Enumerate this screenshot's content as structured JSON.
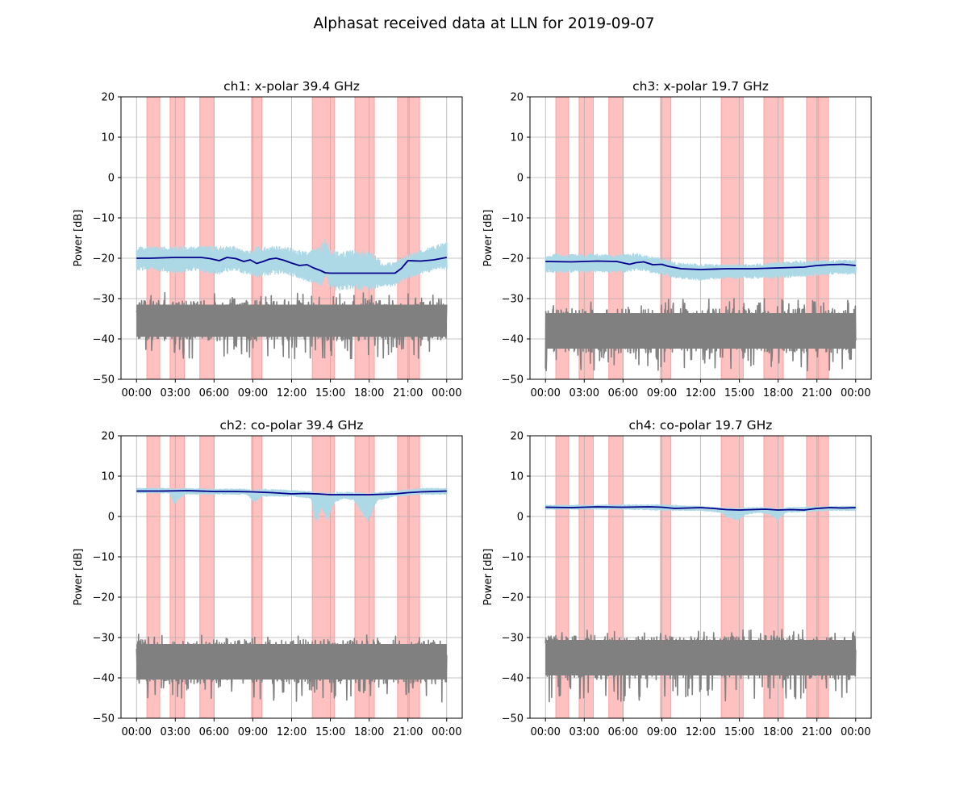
{
  "figure": {
    "suptitle": "Alphasat received data at LLN for 2019-09-07"
  },
  "colors": {
    "rain_band": "#ff9999",
    "raw_signal": "#add8e6",
    "smoothed_signal": "#00008b",
    "noise_floor": "#808080",
    "grid": "#b0b0b0"
  },
  "chart_data": [
    {
      "type": "line",
      "title": "ch1: x-polar 39.4 GHz",
      "ylabel": "Power [dB]",
      "xlabel": "",
      "ylim": [
        -50,
        20
      ],
      "yticks": [
        -50,
        -40,
        -30,
        -20,
        -10,
        0,
        10,
        20
      ],
      "xlim_hours": [
        -1.2,
        25.2
      ],
      "xtick_hours": [
        0,
        3,
        6,
        9,
        12,
        15,
        18,
        21,
        24
      ],
      "xtick_labels": [
        "00:00",
        "03:00",
        "06:00",
        "09:00",
        "12:00",
        "15:00",
        "18:00",
        "21:00",
        "00:00"
      ],
      "grid": true,
      "rain_intervals_hours": [
        [
          0.8,
          1.8
        ],
        [
          2.6,
          3.7
        ],
        [
          4.9,
          6.0
        ],
        [
          8.9,
          9.7
        ],
        [
          13.6,
          15.3
        ],
        [
          16.9,
          18.4
        ],
        [
          20.2,
          21.1
        ],
        [
          21.1,
          21.9
        ]
      ],
      "series": [
        {
          "role": "raw_band",
          "x": [
            0,
            1.5,
            3,
            4.5,
            6,
            6.5,
            7.5,
            8.5,
            9.5,
            10.5,
            11.5,
            12.5,
            13.5,
            14.2,
            14.6,
            15,
            16,
            17,
            18,
            19,
            20,
            21,
            22,
            23,
            24
          ],
          "upper": [
            -17,
            -17,
            -17,
            -17,
            -17,
            -17,
            -17,
            -18,
            -17,
            -17,
            -17,
            -18,
            -18,
            -17,
            -15,
            -18,
            -18,
            -18,
            -18,
            -21,
            -21,
            -19,
            -18,
            -17,
            -16
          ],
          "lower": [
            -23,
            -23,
            -24,
            -23,
            -24,
            -24,
            -23,
            -24,
            -25,
            -24,
            -24,
            -25,
            -26,
            -27,
            -25,
            -28,
            -28,
            -28,
            -28,
            -27,
            -27,
            -25,
            -24,
            -23,
            -23
          ]
        },
        {
          "role": "smoothed",
          "x": [
            0,
            1,
            2,
            3,
            4,
            5,
            5.7,
            6.4,
            7,
            7.7,
            8.3,
            8.8,
            9.3,
            9.8,
            10.3,
            10.8,
            11.4,
            12,
            12.6,
            13.2,
            13.7,
            14.2,
            14.6,
            15,
            16,
            17,
            18,
            19,
            20,
            20.5,
            21,
            22,
            23,
            24
          ],
          "y": [
            -20.0,
            -20.0,
            -19.9,
            -19.8,
            -19.8,
            -19.8,
            -20.1,
            -20.6,
            -19.8,
            -20.1,
            -20.8,
            -20.4,
            -21.3,
            -20.8,
            -20.2,
            -20.0,
            -20.5,
            -21.2,
            -21.8,
            -21.6,
            -22.4,
            -23.0,
            -23.6,
            -23.7,
            -23.7,
            -23.7,
            -23.7,
            -23.7,
            -23.7,
            -22.5,
            -20.6,
            -20.7,
            -20.4,
            -19.8
          ]
        },
        {
          "role": "noise_floor",
          "center": -35.5,
          "core_half_width": 5,
          "spike_low": -45,
          "spike_high": -28.5
        }
      ]
    },
    {
      "type": "line",
      "title": "ch3: x-polar 19.7 GHz",
      "ylabel": "Power [dB]",
      "xlabel": "",
      "ylim": [
        -50,
        20
      ],
      "yticks": [
        -50,
        -40,
        -30,
        -20,
        -10,
        0,
        10,
        20
      ],
      "xlim_hours": [
        -1.2,
        25.2
      ],
      "xtick_hours": [
        0,
        3,
        6,
        9,
        12,
        15,
        18,
        21,
        24
      ],
      "xtick_labels": [
        "00:00",
        "03:00",
        "06:00",
        "09:00",
        "12:00",
        "15:00",
        "18:00",
        "21:00",
        "00:00"
      ],
      "grid": true,
      "rain_intervals_hours": [
        [
          0.8,
          1.8
        ],
        [
          2.6,
          3.7
        ],
        [
          4.9,
          6.0
        ],
        [
          8.9,
          9.7
        ],
        [
          13.6,
          15.3
        ],
        [
          16.9,
          18.4
        ],
        [
          20.2,
          21.1
        ],
        [
          21.1,
          21.9
        ]
      ],
      "series": [
        {
          "role": "raw_band",
          "x": [
            0,
            3,
            6,
            7,
            8,
            9,
            10,
            12,
            14,
            16,
            18,
            20,
            22,
            24
          ],
          "upper": [
            -19,
            -19,
            -19,
            -18.8,
            -19.5,
            -20,
            -21,
            -21.5,
            -21.5,
            -21.5,
            -21,
            -20.5,
            -20.5,
            -20.5
          ],
          "lower": [
            -23.5,
            -23.5,
            -23.5,
            -23,
            -23.5,
            -24,
            -25,
            -25.5,
            -25,
            -25,
            -25,
            -24.5,
            -24,
            -24
          ]
        },
        {
          "role": "smoothed",
          "x": [
            0,
            2,
            4,
            5.5,
            6.5,
            7,
            7.6,
            8.3,
            9,
            9.5,
            10.5,
            12,
            14,
            16,
            18,
            20,
            21,
            22,
            23,
            24
          ],
          "y": [
            -20.8,
            -20.9,
            -20.7,
            -20.8,
            -21.5,
            -21.1,
            -20.9,
            -21.6,
            -21.5,
            -22.0,
            -22.6,
            -22.8,
            -22.6,
            -22.6,
            -22.4,
            -22.2,
            -21.8,
            -21.6,
            -21.5,
            -21.8
          ]
        },
        {
          "role": "noise_floor",
          "center": -38,
          "core_half_width": 5.5,
          "spike_low": -48,
          "spike_high": -30
        }
      ]
    },
    {
      "type": "line",
      "title": "ch2: co-polar 39.4 GHz",
      "ylabel": "Power [dB]",
      "xlabel": "",
      "ylim": [
        -50,
        20
      ],
      "yticks": [
        -50,
        -40,
        -30,
        -20,
        -10,
        0,
        10,
        20
      ],
      "xlim_hours": [
        -1.2,
        25.2
      ],
      "xtick_hours": [
        0,
        3,
        6,
        9,
        12,
        15,
        18,
        21,
        24
      ],
      "xtick_labels": [
        "00:00",
        "03:00",
        "06:00",
        "09:00",
        "12:00",
        "15:00",
        "18:00",
        "21:00",
        "00:00"
      ],
      "grid": true,
      "rain_intervals_hours": [
        [
          0.8,
          1.8
        ],
        [
          2.6,
          3.7
        ],
        [
          4.9,
          6.0
        ],
        [
          8.9,
          9.7
        ],
        [
          13.6,
          15.3
        ],
        [
          16.9,
          18.4
        ],
        [
          20.2,
          21.1
        ],
        [
          21.1,
          21.9
        ]
      ],
      "series": [
        {
          "role": "raw_band",
          "x": [
            0,
            2.5,
            2.9,
            3.3,
            3.8,
            6,
            8.5,
            9.1,
            9.7,
            12,
            13.5,
            13.9,
            14.3,
            14.8,
            15.3,
            16,
            16.8,
            17.4,
            17.9,
            18.6,
            20,
            22,
            24
          ],
          "upper": [
            7,
            7,
            7,
            7,
            7,
            6.8,
            6.8,
            6.5,
            6.8,
            6.5,
            6.2,
            6.0,
            6.0,
            6.0,
            6.0,
            6.0,
            6.0,
            5.8,
            6.0,
            6.0,
            6.3,
            7.0,
            7.0
          ],
          "lower": [
            5.8,
            5.8,
            3.0,
            4.5,
            5.5,
            5.5,
            5.5,
            3.5,
            5.0,
            5.0,
            4.5,
            -2.5,
            2.0,
            -1.5,
            3.5,
            4.5,
            4.0,
            1.0,
            -1.5,
            4.0,
            5.0,
            5.5,
            5.5
          ]
        },
        {
          "role": "smoothed",
          "x": [
            0,
            2,
            4,
            6,
            7.5,
            9,
            10.5,
            12,
            13,
            14,
            15,
            16,
            18,
            20,
            21,
            22,
            23,
            24
          ],
          "y": [
            6.3,
            6.3,
            6.4,
            6.2,
            6.2,
            6.1,
            5.9,
            5.6,
            5.7,
            5.6,
            5.4,
            5.4,
            5.4,
            5.6,
            5.9,
            6.1,
            6.2,
            6.3
          ]
        },
        {
          "role": "noise_floor",
          "center": -36,
          "core_half_width": 5.5,
          "spike_low": -46,
          "spike_high": -29
        }
      ]
    },
    {
      "type": "line",
      "title": "ch4: co-polar 19.7 GHz",
      "ylabel": "Power [dB]",
      "xlabel": "",
      "ylim": [
        -50,
        20
      ],
      "yticks": [
        -50,
        -40,
        -30,
        -20,
        -10,
        0,
        10,
        20
      ],
      "xlim_hours": [
        -1.2,
        25.2
      ],
      "xtick_hours": [
        0,
        3,
        6,
        9,
        12,
        15,
        18,
        21,
        24
      ],
      "xtick_labels": [
        "00:00",
        "03:00",
        "06:00",
        "09:00",
        "12:00",
        "15:00",
        "18:00",
        "21:00",
        "00:00"
      ],
      "grid": true,
      "rain_intervals_hours": [
        [
          0.8,
          1.8
        ],
        [
          2.6,
          3.7
        ],
        [
          4.9,
          6.0
        ],
        [
          8.9,
          9.7
        ],
        [
          13.6,
          15.3
        ],
        [
          16.9,
          18.4
        ],
        [
          20.2,
          21.1
        ],
        [
          21.1,
          21.9
        ]
      ],
      "series": [
        {
          "role": "raw_band",
          "x": [
            0,
            3,
            6,
            9,
            12,
            13.5,
            14.2,
            14.8,
            15.5,
            16.5,
            17.4,
            17.9,
            18.6,
            20,
            22,
            24
          ],
          "upper": [
            2.8,
            2.8,
            2.9,
            2.9,
            2.5,
            2.2,
            2.2,
            2.0,
            2.2,
            2.2,
            2.2,
            2.0,
            2.2,
            2.3,
            2.5,
            2.6
          ],
          "lower": [
            1.8,
            1.8,
            1.8,
            1.5,
            1.5,
            1.0,
            -0.5,
            -1.0,
            0.5,
            1.0,
            0.5,
            -1.0,
            1.0,
            1.2,
            1.5,
            1.5
          ]
        },
        {
          "role": "smoothed",
          "x": [
            0,
            2,
            4,
            6,
            8,
            9,
            10,
            11,
            12,
            13,
            14,
            15,
            16,
            17,
            18,
            19,
            20,
            21,
            22,
            23,
            24
          ],
          "y": [
            2.3,
            2.2,
            2.4,
            2.3,
            2.4,
            2.3,
            2.0,
            2.1,
            2.2,
            2.0,
            1.7,
            1.6,
            1.7,
            1.8,
            1.6,
            1.7,
            1.6,
            2.0,
            2.2,
            2.1,
            2.2
          ]
        },
        {
          "role": "noise_floor",
          "center": -35,
          "core_half_width": 5.5,
          "spike_low": -46,
          "spike_high": -28
        }
      ]
    }
  ]
}
